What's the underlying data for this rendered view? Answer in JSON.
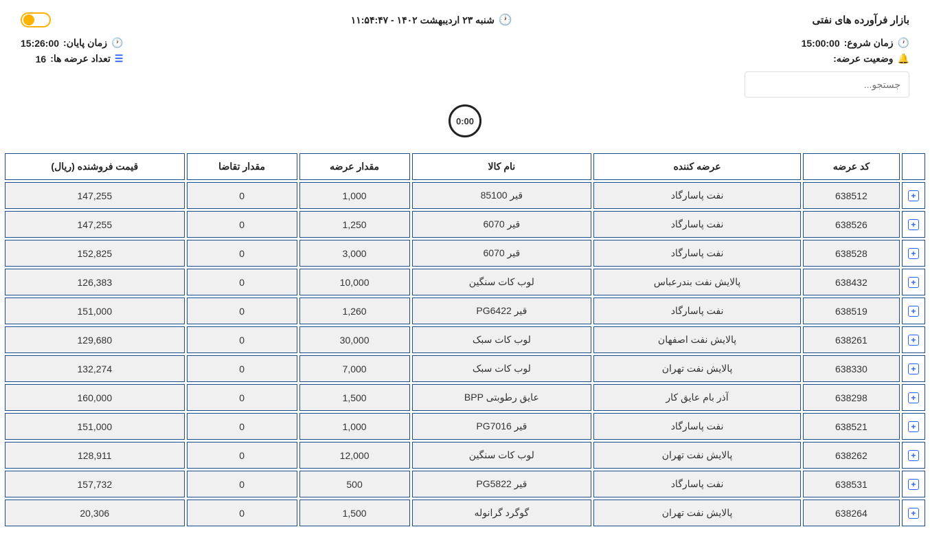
{
  "header": {
    "market_title": "بازار فرآورده های نفتی",
    "datetime": "شنبه ۲۳ اردیبهشت ۱۴۰۲ - ۱۱:۵۴:۴۷"
  },
  "info": {
    "start_label": "زمان شروع:",
    "start_value": "15:00:00",
    "status_label": "وضعیت عرضه:",
    "status_value": "",
    "end_label": "زمان پایان:",
    "end_value": "15:26:00",
    "count_label": "تعداد عرضه ها:",
    "count_value": "16"
  },
  "search": {
    "placeholder": "جستجو..."
  },
  "timer": "0:00",
  "table": {
    "headers": {
      "code": "کد عرضه",
      "supplier": "عرضه کننده",
      "product": "نام کالا",
      "supply": "مقدار عرضه",
      "demand": "مقدار تقاضا",
      "price": "قیمت فروشنده (ریال)"
    },
    "rows": [
      {
        "code": "638512",
        "supplier": "نفت پاسارگاد",
        "product": "قیر 85100",
        "supply": "1,000",
        "demand": "0",
        "price": "147,255"
      },
      {
        "code": "638526",
        "supplier": "نفت پاسارگاد",
        "product": "قیر 6070",
        "supply": "1,250",
        "demand": "0",
        "price": "147,255"
      },
      {
        "code": "638528",
        "supplier": "نفت پاسارگاد",
        "product": "قیر 6070",
        "supply": "3,000",
        "demand": "0",
        "price": "152,825"
      },
      {
        "code": "638432",
        "supplier": "پالایش نفت بندرعباس",
        "product": "لوب کات سنگین",
        "supply": "10,000",
        "demand": "0",
        "price": "126,383"
      },
      {
        "code": "638519",
        "supplier": "نفت پاسارگاد",
        "product": "قیر PG6422",
        "supply": "1,260",
        "demand": "0",
        "price": "151,000"
      },
      {
        "code": "638261",
        "supplier": "پالایش نفت اصفهان",
        "product": "لوب کات سبک",
        "supply": "30,000",
        "demand": "0",
        "price": "129,680"
      },
      {
        "code": "638330",
        "supplier": "پالایش نفت تهران",
        "product": "لوب کات سبک",
        "supply": "7,000",
        "demand": "0",
        "price": "132,274"
      },
      {
        "code": "638298",
        "supplier": "آذر بام عایق کار",
        "product": "عایق رطوبتی BPP",
        "supply": "1,500",
        "demand": "0",
        "price": "160,000"
      },
      {
        "code": "638521",
        "supplier": "نفت پاسارگاد",
        "product": "قیر PG7016",
        "supply": "1,000",
        "demand": "0",
        "price": "151,000"
      },
      {
        "code": "638262",
        "supplier": "پالایش نفت تهران",
        "product": "لوب کات سنگین",
        "supply": "12,000",
        "demand": "0",
        "price": "128,911"
      },
      {
        "code": "638531",
        "supplier": "نفت پاسارگاد",
        "product": "قیر PG5822",
        "supply": "500",
        "demand": "0",
        "price": "157,732"
      },
      {
        "code": "638264",
        "supplier": "پالایش نفت تهران",
        "product": "گوگرد گرانوله",
        "supply": "1,500",
        "demand": "0",
        "price": "20,306"
      }
    ]
  },
  "colors": {
    "border": "#1a4b8c",
    "row_bg": "#f0f0f0",
    "header_bg": "#ffffff",
    "accent_blue": "#2962ff",
    "accent_orange": "#ffb300",
    "accent_green": "#4caf50",
    "accent_red": "#f44336",
    "accent_cyan": "#00bcd4"
  }
}
